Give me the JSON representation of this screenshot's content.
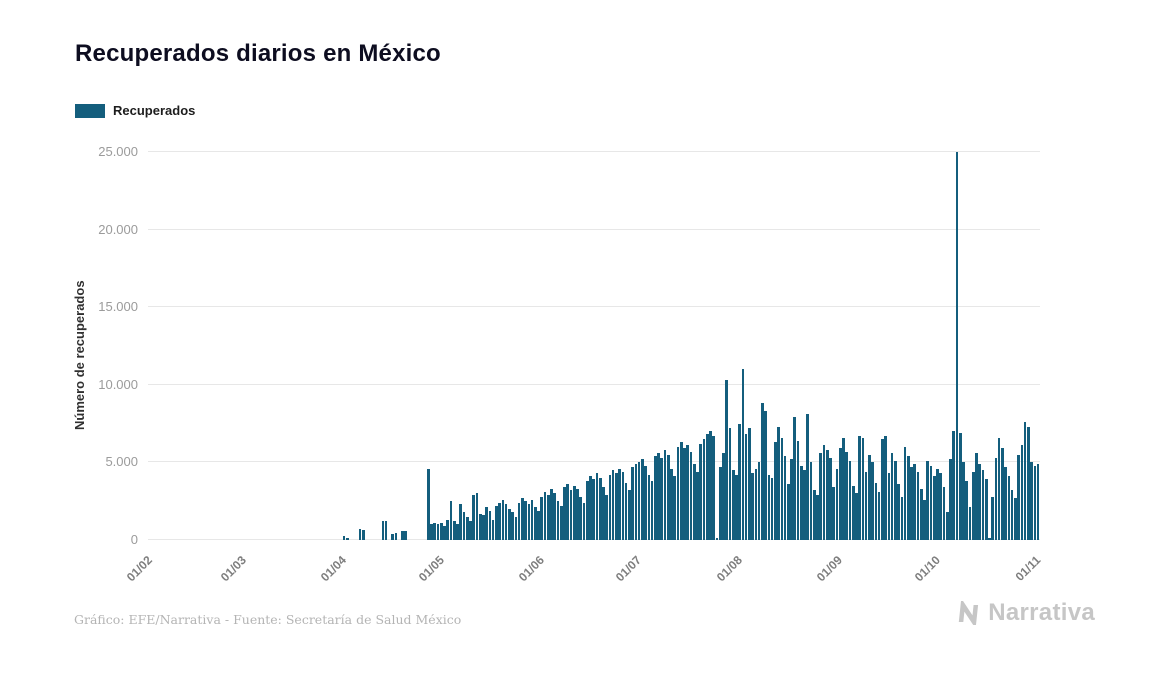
{
  "legend": {
    "label": "Recuperados",
    "color": "#145e7d"
  },
  "footer": {
    "credit": "Gráfico: EFE/Narrativa - Fuente: Secretaría de Salud México",
    "logo_text": "Narrativa"
  },
  "chart_data": {
    "type": "bar",
    "title": "Recuperados diarios en México",
    "xlabel": "",
    "ylabel": "Número de recuperados",
    "ylim": [
      0,
      25000
    ],
    "grid": true,
    "legend_position": "top-left",
    "y_ticks": [
      0,
      5000,
      10000,
      15000,
      20000,
      25000
    ],
    "y_tick_labels": [
      "0",
      "5.000",
      "10.000",
      "15.000",
      "20.000",
      "25.000"
    ],
    "x_ticks": [
      {
        "label": "01/02",
        "index": 0
      },
      {
        "label": "01/03",
        "index": 29
      },
      {
        "label": "01/04",
        "index": 60
      },
      {
        "label": "01/05",
        "index": 90
      },
      {
        "label": "01/06",
        "index": 121
      },
      {
        "label": "01/07",
        "index": 151
      },
      {
        "label": "01/08",
        "index": 182
      },
      {
        "label": "01/09",
        "index": 213
      },
      {
        "label": "01/10",
        "index": 243
      },
      {
        "label": "01/11",
        "index": 274
      }
    ],
    "series": [
      {
        "name": "Recuperados",
        "color": "#145e7d",
        "values": [
          0,
          0,
          0,
          0,
          0,
          0,
          0,
          0,
          0,
          0,
          0,
          0,
          0,
          0,
          0,
          0,
          0,
          0,
          0,
          0,
          0,
          0,
          0,
          0,
          0,
          0,
          0,
          0,
          0,
          0,
          0,
          0,
          0,
          0,
          0,
          0,
          0,
          0,
          0,
          0,
          0,
          0,
          0,
          0,
          0,
          0,
          0,
          0,
          0,
          0,
          0,
          0,
          0,
          0,
          0,
          0,
          0,
          0,
          0,
          0,
          250,
          150,
          0,
          0,
          0,
          700,
          650,
          0,
          0,
          0,
          0,
          0,
          1200,
          1250,
          0,
          400,
          420,
          0,
          550,
          600,
          0,
          0,
          0,
          0,
          0,
          0,
          4600,
          1050,
          1100,
          1000,
          1100,
          900,
          1300,
          2500,
          1200,
          1000,
          2300,
          1800,
          1500,
          1200,
          2900,
          3000,
          1700,
          1600,
          2100,
          1900,
          1300,
          2200,
          2400,
          2600,
          2300,
          2000,
          1800,
          1500,
          2400,
          2700,
          2500,
          2300,
          2600,
          2100,
          1900,
          2800,
          3100,
          2900,
          3300,
          3000,
          2500,
          2200,
          3400,
          3600,
          3200,
          3500,
          3300,
          2800,
          2400,
          3800,
          4100,
          3900,
          4300,
          4000,
          3400,
          2900,
          4200,
          4500,
          4300,
          4600,
          4400,
          3700,
          3200,
          4700,
          4900,
          5000,
          5200,
          4800,
          4200,
          3800,
          5400,
          5600,
          5300,
          5800,
          5500,
          4600,
          4100,
          6000,
          6300,
          5900,
          6100,
          5700,
          4900,
          4400,
          6200,
          6500,
          6800,
          7000,
          6700,
          100,
          4700,
          5600,
          10300,
          7200,
          4500,
          4200,
          7500,
          11000,
          6800,
          7200,
          4300,
          4600,
          5000,
          8800,
          8300,
          4200,
          4000,
          6300,
          7300,
          6600,
          5400,
          3600,
          5200,
          7900,
          6400,
          4800,
          4500,
          8100,
          5000,
          3200,
          2900,
          5600,
          6100,
          5800,
          5300,
          3400,
          4600,
          5900,
          6600,
          5700,
          5100,
          3500,
          3000,
          6700,
          6600,
          4400,
          5500,
          5000,
          3700,
          3100,
          6500,
          6700,
          4300,
          5600,
          5100,
          3600,
          2800,
          6000,
          5400,
          4700,
          4900,
          4400,
          3300,
          2600,
          5100,
          4800,
          4100,
          4600,
          4300,
          3400,
          1800,
          5200,
          7000,
          25000,
          6900,
          5000,
          3800,
          2100,
          4400,
          5600,
          4900,
          4500,
          3900,
          100,
          2800,
          5300,
          6600,
          5900,
          4700,
          4100,
          3200,
          2700,
          5500,
          6100,
          7600,
          7300,
          5000,
          4800,
          4900
        ]
      }
    ]
  }
}
